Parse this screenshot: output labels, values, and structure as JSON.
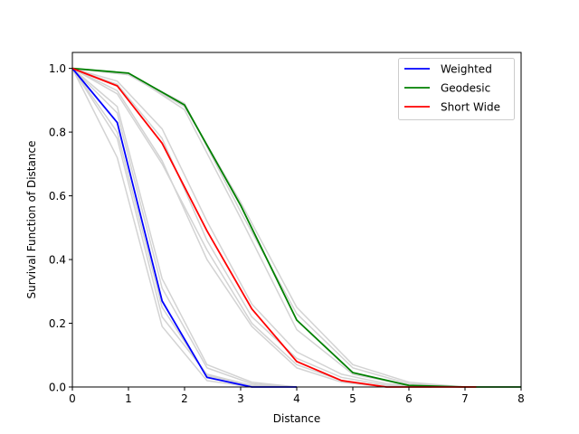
{
  "chart_data": {
    "type": "line",
    "xlabel": "Distance",
    "ylabel": "Survival Function of Distance",
    "xlim": [
      0,
      8
    ],
    "ylim": [
      0,
      1.05
    ],
    "x_ticks": [
      0,
      1,
      2,
      3,
      4,
      5,
      6,
      7,
      8
    ],
    "y_ticks": [
      0.0,
      0.2,
      0.4,
      0.6,
      0.8,
      1.0
    ],
    "x_tick_labels": [
      "0",
      "1",
      "2",
      "3",
      "4",
      "5",
      "6",
      "7",
      "8"
    ],
    "y_tick_labels": [
      "0.0",
      "0.2",
      "0.4",
      "0.6",
      "0.8",
      "1.0"
    ],
    "grid": false,
    "legend_position": "top-right",
    "series": [
      {
        "name": "Weighted",
        "color": "#0000ff",
        "x": [
          0,
          0.8,
          1.6,
          2.4,
          3.2,
          4.0
        ],
        "y": [
          1.0,
          0.83,
          0.27,
          0.03,
          0.0,
          0.0
        ]
      },
      {
        "name": "Geodesic",
        "color": "#008000",
        "x": [
          0,
          1.0,
          2.0,
          3.0,
          4.0,
          5.0,
          6.0,
          7.0,
          8.0
        ],
        "y": [
          1.0,
          0.985,
          0.885,
          0.57,
          0.21,
          0.045,
          0.005,
          0.0,
          0.0
        ]
      },
      {
        "name": "Short Wide",
        "color": "#ff0000",
        "x": [
          0,
          0.8,
          1.6,
          2.4,
          3.2,
          4.0,
          4.8,
          5.6,
          6.4,
          7.2
        ],
        "y": [
          1.0,
          0.945,
          0.765,
          0.49,
          0.245,
          0.08,
          0.02,
          0.0,
          0.0,
          0.0
        ]
      }
    ],
    "background_series": {
      "color": "#d3d3d3",
      "lines": [
        {
          "x": [
            0,
            0.8,
            1.6,
            2.4,
            3.2,
            4.0
          ],
          "y": [
            1.0,
            0.88,
            0.34,
            0.07,
            0.015,
            0.0
          ]
        },
        {
          "x": [
            0,
            0.8,
            1.6,
            2.4,
            3.2,
            4.0
          ],
          "y": [
            1.0,
            0.78,
            0.22,
            0.04,
            0.005,
            0.0
          ]
        },
        {
          "x": [
            0,
            0.8,
            1.6,
            2.4,
            3.2,
            4.0
          ],
          "y": [
            1.0,
            0.72,
            0.19,
            0.02,
            0.0,
            0.0
          ]
        },
        {
          "x": [
            0,
            0.8,
            1.6,
            2.4,
            3.2,
            4.0
          ],
          "y": [
            1.0,
            0.86,
            0.31,
            0.06,
            0.01,
            0.0
          ]
        },
        {
          "x": [
            0,
            0.8,
            1.6,
            2.4,
            3.2,
            4.0
          ],
          "y": [
            1.0,
            0.8,
            0.25,
            0.035,
            0.005,
            0.0
          ]
        },
        {
          "x": [
            0,
            1.0,
            2.0,
            3.0,
            4.0,
            5.0,
            6.0,
            7.0
          ],
          "y": [
            1.0,
            0.98,
            0.88,
            0.58,
            0.25,
            0.07,
            0.015,
            0.0
          ]
        },
        {
          "x": [
            0,
            1.0,
            2.0,
            3.0,
            4.0,
            5.0,
            6.0,
            7.0
          ],
          "y": [
            1.0,
            0.985,
            0.87,
            0.53,
            0.18,
            0.04,
            0.005,
            0.0
          ]
        },
        {
          "x": [
            0,
            1.0,
            2.0,
            3.0,
            4.0,
            5.0,
            6.0,
            7.0
          ],
          "y": [
            1.0,
            0.98,
            0.89,
            0.55,
            0.23,
            0.06,
            0.01,
            0.0
          ]
        },
        {
          "x": [
            0,
            0.8,
            1.6,
            2.4,
            3.2,
            4.0,
            4.8,
            5.6,
            6.4
          ],
          "y": [
            1.0,
            0.96,
            0.81,
            0.52,
            0.26,
            0.11,
            0.04,
            0.01,
            0.0
          ]
        },
        {
          "x": [
            0,
            0.8,
            1.6,
            2.4,
            3.2,
            4.0,
            4.8,
            5.6,
            6.4
          ],
          "y": [
            1.0,
            0.93,
            0.71,
            0.4,
            0.19,
            0.06,
            0.015,
            0.0,
            0.0
          ]
        },
        {
          "x": [
            0,
            0.8,
            1.6,
            2.4,
            3.2,
            4.0,
            4.8,
            5.6,
            6.4
          ],
          "y": [
            1.0,
            0.95,
            0.78,
            0.46,
            0.22,
            0.09,
            0.03,
            0.005,
            0.0
          ]
        },
        {
          "x": [
            0,
            0.8,
            1.6,
            2.4,
            3.2,
            4.0,
            4.8,
            5.6,
            6.4
          ],
          "y": [
            1.0,
            0.92,
            0.7,
            0.43,
            0.2,
            0.07,
            0.02,
            0.0,
            0.0
          ]
        }
      ]
    }
  }
}
